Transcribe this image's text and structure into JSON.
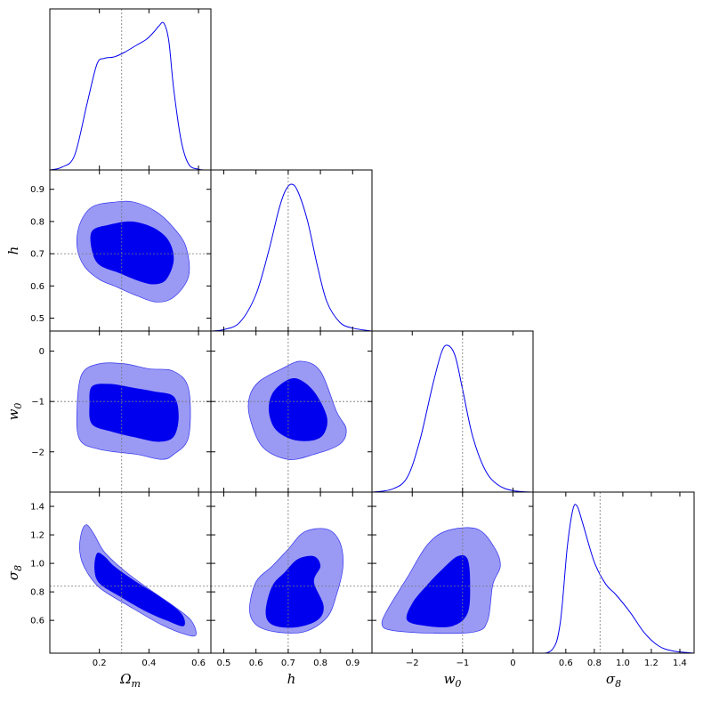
{
  "chart_data": {
    "type": "triangle-corner-plot",
    "parameters": [
      {
        "id": "om",
        "label_main": "Ω",
        "label_sub": "m",
        "range": [
          0.0,
          0.65
        ],
        "ticks": [
          0.2,
          0.4,
          0.6
        ],
        "tick_labels": [
          "0.2",
          "0.4",
          "0.6"
        ],
        "reference": 0.29
      },
      {
        "id": "h",
        "label_main": "h",
        "label_sub": "",
        "range": [
          0.46,
          0.96
        ],
        "ticks": [
          0.5,
          0.6,
          0.7,
          0.8,
          0.9
        ],
        "tick_labels": [
          "0.5",
          "0.6",
          "0.7",
          "0.8",
          "0.9"
        ],
        "reference": 0.7
      },
      {
        "id": "w0",
        "label_main": "w",
        "label_sub": "0",
        "range": [
          -2.8,
          0.4
        ],
        "ticks": [
          -2,
          -1,
          0
        ],
        "tick_labels": [
          "−2",
          "−1",
          "0"
        ],
        "reference": -1.0
      },
      {
        "id": "s8",
        "label_main": "σ",
        "label_sub": "8",
        "range": [
          0.37,
          1.5
        ],
        "ticks": [
          0.6,
          0.8,
          1.0,
          1.2,
          1.4
        ],
        "tick_labels": [
          "0.6",
          "0.8",
          "1.0",
          "1.2",
          "1.4"
        ],
        "reference": 0.84
      }
    ],
    "marginals": {
      "om": [
        [
          0.0,
          0
        ],
        [
          0.05,
          0.02
        ],
        [
          0.1,
          0.1
        ],
        [
          0.15,
          0.45
        ],
        [
          0.19,
          0.72
        ],
        [
          0.22,
          0.76
        ],
        [
          0.26,
          0.77
        ],
        [
          0.3,
          0.8
        ],
        [
          0.35,
          0.85
        ],
        [
          0.39,
          0.89
        ],
        [
          0.42,
          0.94
        ],
        [
          0.44,
          0.98
        ],
        [
          0.46,
          1.0
        ],
        [
          0.48,
          0.88
        ],
        [
          0.5,
          0.55
        ],
        [
          0.53,
          0.2
        ],
        [
          0.56,
          0.04
        ],
        [
          0.6,
          0.005
        ],
        [
          0.65,
          0
        ]
      ],
      "h": [
        [
          0.46,
          0
        ],
        [
          0.5,
          0.01
        ],
        [
          0.55,
          0.06
        ],
        [
          0.6,
          0.25
        ],
        [
          0.64,
          0.55
        ],
        [
          0.67,
          0.82
        ],
        [
          0.69,
          0.95
        ],
        [
          0.71,
          1.0
        ],
        [
          0.73,
          0.95
        ],
        [
          0.76,
          0.75
        ],
        [
          0.79,
          0.45
        ],
        [
          0.82,
          0.2
        ],
        [
          0.86,
          0.06
        ],
        [
          0.9,
          0.02
        ],
        [
          0.96,
          0
        ]
      ],
      "w0": [
        [
          -2.8,
          0
        ],
        [
          -2.4,
          0.02
        ],
        [
          -2.1,
          0.1
        ],
        [
          -1.85,
          0.35
        ],
        [
          -1.6,
          0.72
        ],
        [
          -1.42,
          0.95
        ],
        [
          -1.3,
          1.0
        ],
        [
          -1.15,
          0.93
        ],
        [
          -1.0,
          0.7
        ],
        [
          -0.8,
          0.38
        ],
        [
          -0.55,
          0.15
        ],
        [
          -0.3,
          0.05
        ],
        [
          0.0,
          0.01
        ],
        [
          0.4,
          0
        ]
      ],
      "s8": [
        [
          0.37,
          0
        ],
        [
          0.5,
          0.02
        ],
        [
          0.56,
          0.2
        ],
        [
          0.61,
          0.72
        ],
        [
          0.65,
          0.98
        ],
        [
          0.68,
          1.0
        ],
        [
          0.72,
          0.88
        ],
        [
          0.8,
          0.62
        ],
        [
          0.88,
          0.47
        ],
        [
          0.95,
          0.4
        ],
        [
          1.05,
          0.28
        ],
        [
          1.15,
          0.14
        ],
        [
          1.25,
          0.05
        ],
        [
          1.35,
          0.015
        ],
        [
          1.5,
          0
        ]
      ]
    },
    "contours": {
      "h|om": {
        "c95": [
          [
            0.12,
            0.79
          ],
          [
            0.17,
            0.845
          ],
          [
            0.26,
            0.86
          ],
          [
            0.34,
            0.86
          ],
          [
            0.43,
            0.83
          ],
          [
            0.5,
            0.78
          ],
          [
            0.55,
            0.72
          ],
          [
            0.56,
            0.63
          ],
          [
            0.5,
            0.565
          ],
          [
            0.43,
            0.55
          ],
          [
            0.35,
            0.57
          ],
          [
            0.26,
            0.6
          ],
          [
            0.2,
            0.62
          ],
          [
            0.14,
            0.66
          ],
          [
            0.11,
            0.72
          ]
        ],
        "c68": [
          [
            0.17,
            0.77
          ],
          [
            0.24,
            0.79
          ],
          [
            0.33,
            0.8
          ],
          [
            0.42,
            0.78
          ],
          [
            0.48,
            0.74
          ],
          [
            0.5,
            0.68
          ],
          [
            0.47,
            0.62
          ],
          [
            0.42,
            0.605
          ],
          [
            0.36,
            0.615
          ],
          [
            0.28,
            0.64
          ],
          [
            0.2,
            0.665
          ],
          [
            0.17,
            0.71
          ]
        ]
      },
      "w0|om": {
        "c95": [
          [
            0.13,
            -0.45
          ],
          [
            0.2,
            -0.25
          ],
          [
            0.3,
            -0.25
          ],
          [
            0.4,
            -0.35
          ],
          [
            0.5,
            -0.4
          ],
          [
            0.56,
            -0.75
          ],
          [
            0.56,
            -1.7
          ],
          [
            0.5,
            -2.05
          ],
          [
            0.45,
            -2.15
          ],
          [
            0.35,
            -2.05
          ],
          [
            0.2,
            -1.95
          ],
          [
            0.12,
            -1.75
          ],
          [
            0.11,
            -1.1
          ]
        ],
        "c68": [
          [
            0.17,
            -0.7
          ],
          [
            0.24,
            -0.65
          ],
          [
            0.33,
            -0.72
          ],
          [
            0.42,
            -0.8
          ],
          [
            0.5,
            -0.9
          ],
          [
            0.52,
            -1.3
          ],
          [
            0.5,
            -1.7
          ],
          [
            0.44,
            -1.8
          ],
          [
            0.35,
            -1.72
          ],
          [
            0.25,
            -1.6
          ],
          [
            0.17,
            -1.45
          ],
          [
            0.16,
            -1.05
          ]
        ]
      },
      "w0|h": {
        "c95": [
          [
            0.61,
            -0.6
          ],
          [
            0.68,
            -0.35
          ],
          [
            0.74,
            -0.2
          ],
          [
            0.8,
            -0.4
          ],
          [
            0.85,
            -1.2
          ],
          [
            0.88,
            -1.55
          ],
          [
            0.86,
            -1.85
          ],
          [
            0.78,
            -2.05
          ],
          [
            0.7,
            -2.15
          ],
          [
            0.62,
            -1.9
          ],
          [
            0.58,
            -1.3
          ],
          [
            0.58,
            -0.9
          ]
        ],
        "c68": [
          [
            0.65,
            -0.85
          ],
          [
            0.69,
            -0.6
          ],
          [
            0.73,
            -0.55
          ],
          [
            0.78,
            -0.8
          ],
          [
            0.82,
            -1.3
          ],
          [
            0.81,
            -1.65
          ],
          [
            0.77,
            -1.78
          ],
          [
            0.71,
            -1.75
          ],
          [
            0.66,
            -1.55
          ],
          [
            0.64,
            -1.2
          ]
        ]
      },
      "s8|om": {
        "c95": [
          [
            0.13,
            1.23
          ],
          [
            0.15,
            1.27
          ],
          [
            0.18,
            1.2
          ],
          [
            0.22,
            1.08
          ],
          [
            0.3,
            0.95
          ],
          [
            0.4,
            0.82
          ],
          [
            0.5,
            0.7
          ],
          [
            0.57,
            0.6
          ],
          [
            0.59,
            0.5
          ],
          [
            0.55,
            0.5
          ],
          [
            0.45,
            0.57
          ],
          [
            0.32,
            0.7
          ],
          [
            0.2,
            0.83
          ],
          [
            0.14,
            0.97
          ],
          [
            0.12,
            1.1
          ]
        ],
        "c68": [
          [
            0.19,
            1.07
          ],
          [
            0.22,
            1.05
          ],
          [
            0.26,
            0.98
          ],
          [
            0.34,
            0.88
          ],
          [
            0.44,
            0.77
          ],
          [
            0.53,
            0.65
          ],
          [
            0.54,
            0.56
          ],
          [
            0.47,
            0.6
          ],
          [
            0.38,
            0.67
          ],
          [
            0.28,
            0.77
          ],
          [
            0.2,
            0.86
          ],
          [
            0.18,
            0.96
          ]
        ]
      },
      "s8|h": {
        "c95": [
          [
            0.6,
            0.87
          ],
          [
            0.65,
            0.98
          ],
          [
            0.7,
            1.1
          ],
          [
            0.75,
            1.22
          ],
          [
            0.82,
            1.24
          ],
          [
            0.86,
            1.15
          ],
          [
            0.87,
            0.98
          ],
          [
            0.85,
            0.78
          ],
          [
            0.82,
            0.62
          ],
          [
            0.75,
            0.52
          ],
          [
            0.66,
            0.52
          ],
          [
            0.6,
            0.57
          ],
          [
            0.58,
            0.68
          ]
        ],
        "c68": [
          [
            0.65,
            0.84
          ],
          [
            0.69,
            0.94
          ],
          [
            0.73,
            1.03
          ],
          [
            0.78,
            1.05
          ],
          [
            0.8,
            0.98
          ],
          [
            0.78,
            0.87
          ],
          [
            0.81,
            0.7
          ],
          [
            0.79,
            0.6
          ],
          [
            0.72,
            0.55
          ],
          [
            0.65,
            0.57
          ],
          [
            0.63,
            0.66
          ]
        ]
      },
      "s8|w0": {
        "c95": [
          [
            -2.5,
            0.67
          ],
          [
            -2.1,
            0.9
          ],
          [
            -1.7,
            1.13
          ],
          [
            -1.3,
            1.23
          ],
          [
            -0.7,
            1.24
          ],
          [
            -0.35,
            1.1
          ],
          [
            -0.25,
            0.98
          ],
          [
            -0.4,
            0.85
          ],
          [
            -0.5,
            0.6
          ],
          [
            -0.75,
            0.52
          ],
          [
            -1.6,
            0.51
          ],
          [
            -2.4,
            0.53
          ],
          [
            -2.6,
            0.57
          ]
        ],
        "c68": [
          [
            -2.0,
            0.72
          ],
          [
            -1.7,
            0.85
          ],
          [
            -1.4,
            0.96
          ],
          [
            -1.1,
            1.05
          ],
          [
            -0.9,
            1.03
          ],
          [
            -0.85,
            0.85
          ],
          [
            -0.9,
            0.65
          ],
          [
            -1.2,
            0.56
          ],
          [
            -1.7,
            0.56
          ],
          [
            -2.1,
            0.6
          ]
        ]
      }
    }
  }
}
